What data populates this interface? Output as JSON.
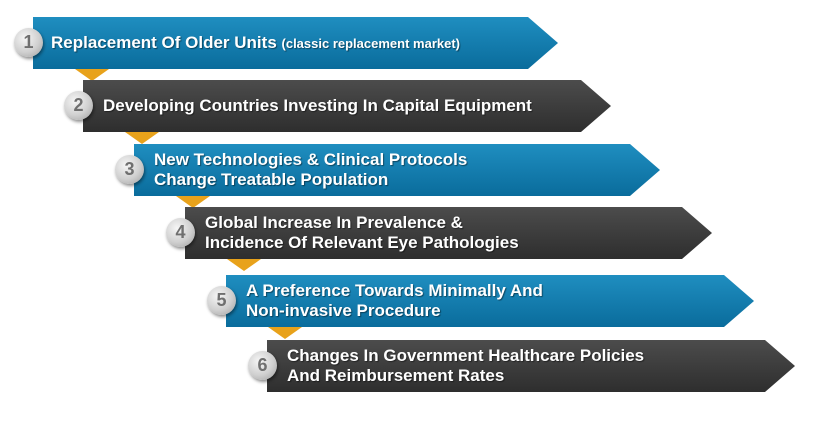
{
  "steps": [
    {
      "number": "1",
      "main": "Replacement Of Older Units",
      "detail": "(classic replacement market)",
      "line2": "",
      "color": "#1a86b8"
    },
    {
      "number": "2",
      "main": "Developing Countries Investing In Capital Equipment",
      "detail": "",
      "line2": "",
      "color": "#3c3c3c"
    },
    {
      "number": "3",
      "main": "New Technologies & Clinical Protocols",
      "detail": "",
      "line2": "Change Treatable Population",
      "color": "#1a86b8"
    },
    {
      "number": "4",
      "main": "Global Increase In Prevalence &",
      "detail": "",
      "line2": "Incidence Of Relevant Eye Pathologies",
      "color": "#3c3c3c"
    },
    {
      "number": "5",
      "main": "A Preference Towards Minimally And",
      "detail": "",
      "line2": "Non-invasive Procedure",
      "color": "#1a86b8"
    },
    {
      "number": "6",
      "main": "Changes In Government Healthcare Policies",
      "detail": "",
      "line2": "And Reimbursement Rates",
      "color": "#3c3c3c"
    }
  ],
  "connector_color": "#e8a21b"
}
